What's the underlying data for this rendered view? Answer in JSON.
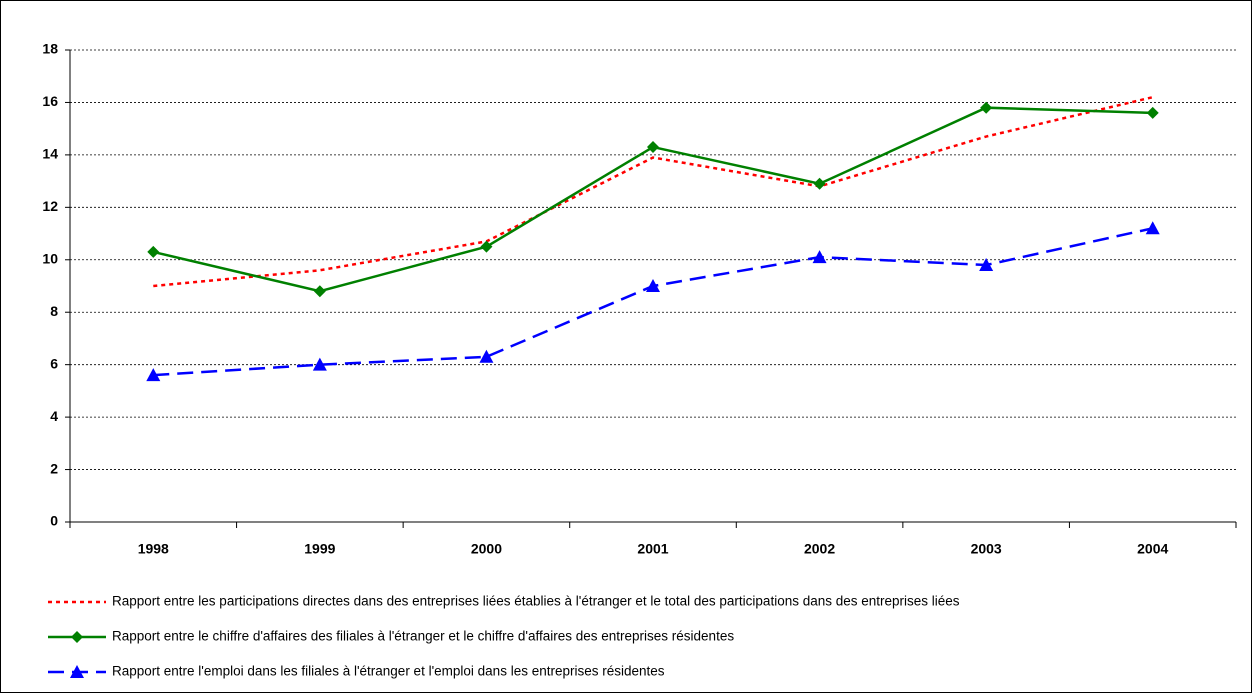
{
  "chart_data": {
    "type": "line",
    "categories": [
      "1998",
      "1999",
      "2000",
      "2001",
      "2002",
      "2003",
      "2004"
    ],
    "series": [
      {
        "name": "Rapport entre les participations directes dans des entreprises liées établies à l'étranger et le total des participations dans des entreprises liées",
        "color": "#ff0000",
        "dash": "dotted",
        "marker": "none",
        "values": [
          9.0,
          9.6,
          10.7,
          13.9,
          12.8,
          14.7,
          16.2
        ]
      },
      {
        "name": "Rapport entre le chiffre d'affaires des filiales à l'étranger et le chiffre d'affaires des entreprises résidentes",
        "color": "#008000",
        "dash": "solid",
        "marker": "diamond",
        "values": [
          10.3,
          8.8,
          10.5,
          14.3,
          12.9,
          15.8,
          15.6
        ]
      },
      {
        "name": "Rapport entre l'emploi dans les filiales à l'étranger et l'emploi dans les entreprises résidentes",
        "color": "#0000ff",
        "dash": "dashed",
        "marker": "triangle",
        "values": [
          5.6,
          6.0,
          6.3,
          9.0,
          10.1,
          9.8,
          11.2
        ]
      }
    ],
    "ylim": [
      0,
      18
    ],
    "yticks": [
      0,
      2,
      4,
      6,
      8,
      10,
      12,
      14,
      16,
      18
    ],
    "grid": true,
    "legend": "bottom"
  }
}
